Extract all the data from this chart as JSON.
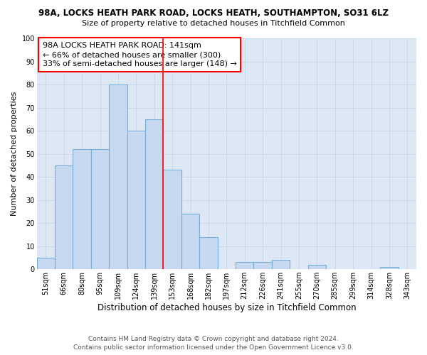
{
  "title1": "98A, LOCKS HEATH PARK ROAD, LOCKS HEATH, SOUTHAMPTON, SO31 6LZ",
  "title2": "Size of property relative to detached houses in Titchfield Common",
  "xlabel": "Distribution of detached houses by size in Titchfield Common",
  "ylabel": "Number of detached properties",
  "footnote1": "Contains HM Land Registry data © Crown copyright and database right 2024.",
  "footnote2": "Contains public sector information licensed under the Open Government Licence v3.0.",
  "bar_labels": [
    "51sqm",
    "66sqm",
    "80sqm",
    "95sqm",
    "109sqm",
    "124sqm",
    "139sqm",
    "153sqm",
    "168sqm",
    "182sqm",
    "197sqm",
    "212sqm",
    "226sqm",
    "241sqm",
    "255sqm",
    "270sqm",
    "285sqm",
    "299sqm",
    "314sqm",
    "328sqm",
    "343sqm"
  ],
  "bar_values": [
    5,
    45,
    52,
    52,
    80,
    60,
    65,
    43,
    24,
    14,
    0,
    3,
    3,
    4,
    0,
    2,
    0,
    0,
    0,
    1,
    0
  ],
  "bar_color": "#c6d9f0",
  "bar_edge_color": "#7ab0d8",
  "grid_color": "#c8d8e8",
  "vline_x": 6.5,
  "vline_color": "red",
  "annotation_text": "98A LOCKS HEATH PARK ROAD: 141sqm\n← 66% of detached houses are smaller (300)\n33% of semi-detached houses are larger (148) →",
  "annotation_box_color": "white",
  "annotation_box_edge_color": "red",
  "ylim": [
    0,
    100
  ],
  "yticks": [
    0,
    10,
    20,
    30,
    40,
    50,
    60,
    70,
    80,
    90,
    100
  ],
  "bg_color": "#dde8f4",
  "background_color": "white",
  "title1_fontsize": 8.5,
  "title2_fontsize": 8.0,
  "xlabel_fontsize": 8.5,
  "ylabel_fontsize": 8.0,
  "tick_fontsize": 7.0,
  "annot_fontsize": 8.0,
  "footnote_fontsize": 6.5
}
